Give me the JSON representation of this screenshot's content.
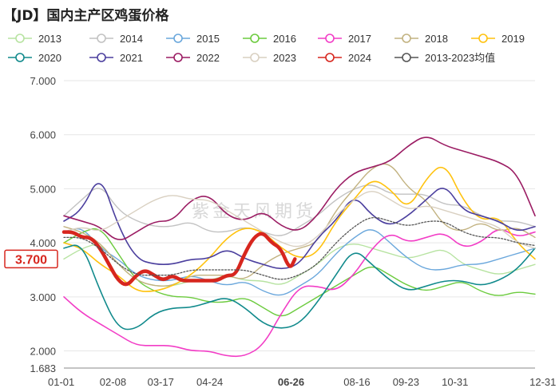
{
  "chart_data": {
    "type": "line",
    "title": "【JD】国内主产区鸡蛋价格",
    "watermark": "紫金天风期货",
    "ylim": [
      1.683,
      7.0
    ],
    "yticks": [
      "7.000",
      "6.000",
      "5.000",
      "4.000",
      "3.000",
      "2.000",
      "1.683"
    ],
    "ytick_values": [
      7.0,
      6.0,
      5.0,
      4.0,
      3.0,
      2.0,
      1.683
    ],
    "x_day_max": 365,
    "xticks": [
      {
        "label": "01-01",
        "day": 0
      },
      {
        "label": "02-08",
        "day": 38
      },
      {
        "label": "03-17",
        "day": 75
      },
      {
        "label": "04-24",
        "day": 113
      },
      {
        "label": "06-26",
        "day": 176,
        "highlight": true
      },
      {
        "label": "08-16",
        "day": 227
      },
      {
        "label": "09-23",
        "day": 265
      },
      {
        "label": "10-31",
        "day": 303
      },
      {
        "label": "12-31",
        "day": 364
      }
    ],
    "current_value_label": "3.700",
    "current_value": 3.7,
    "current_date_label": "06-26",
    "series": [
      {
        "name": "2013",
        "color": "#b7e3a1",
        "width": 1.4,
        "dash": "",
        "values": [
          3.7,
          3.9,
          4.0,
          3.6,
          3.3,
          3.2,
          3.2,
          3.3,
          3.3,
          3.4,
          3.3,
          3.3,
          3.2,
          3.4,
          3.6,
          3.9,
          4.0,
          3.9,
          3.8,
          3.7,
          3.8,
          3.9,
          3.6,
          3.5,
          3.4,
          3.5,
          3.6
        ]
      },
      {
        "name": "2014",
        "color": "#c2c2c2",
        "width": 1.4,
        "dash": "",
        "values": [
          4.5,
          4.8,
          5.1,
          4.6,
          4.4,
          4.3,
          4.3,
          4.4,
          4.2,
          4.2,
          4.3,
          4.2,
          4.1,
          4.3,
          4.5,
          4.8,
          5.0,
          5.1,
          4.9,
          4.9,
          4.9,
          4.7,
          4.7,
          4.5,
          4.4,
          4.4,
          4.3
        ]
      },
      {
        "name": "2015",
        "color": "#6aa7dc",
        "width": 1.4,
        "dash": "",
        "values": [
          4.2,
          4.3,
          3.9,
          3.7,
          3.4,
          3.3,
          3.3,
          3.4,
          3.3,
          3.2,
          3.3,
          3.1,
          3.0,
          3.2,
          3.4,
          3.8,
          4.1,
          4.3,
          4.0,
          3.7,
          3.5,
          3.5,
          3.6,
          3.6,
          3.7,
          3.8,
          3.9
        ]
      },
      {
        "name": "2016",
        "color": "#6ccb3e",
        "width": 1.4,
        "dash": "",
        "values": [
          4.0,
          4.2,
          4.3,
          3.8,
          3.3,
          3.1,
          3.0,
          3.0,
          2.9,
          2.9,
          3.0,
          2.8,
          2.6,
          2.8,
          3.0,
          3.2,
          3.4,
          3.6,
          3.4,
          3.2,
          3.1,
          3.2,
          3.3,
          3.1,
          3.0,
          3.1,
          3.05
        ]
      },
      {
        "name": "2017",
        "color": "#f23dc6",
        "width": 1.6,
        "dash": "",
        "values": [
          3.0,
          2.7,
          2.5,
          2.3,
          2.1,
          2.1,
          2.1,
          2.0,
          2.0,
          1.9,
          1.9,
          2.1,
          2.7,
          3.2,
          3.2,
          3.1,
          3.4,
          3.9,
          4.2,
          4.0,
          4.1,
          4.2,
          3.9,
          4.0,
          4.3,
          4.1,
          4.2
        ]
      },
      {
        "name": "2018",
        "color": "#c2b280",
        "width": 1.4,
        "dash": "",
        "values": [
          4.3,
          4.2,
          4.0,
          3.6,
          3.3,
          3.2,
          3.2,
          3.4,
          3.4,
          3.4,
          3.3,
          3.6,
          3.8,
          3.9,
          4.0,
          4.6,
          5.0,
          5.4,
          5.5,
          5.0,
          4.8,
          4.3,
          4.2,
          4.4,
          4.2,
          4.3,
          4.1
        ]
      },
      {
        "name": "2019",
        "color": "#ffc20e",
        "width": 1.6,
        "dash": "",
        "values": [
          4.0,
          3.9,
          3.6,
          3.4,
          3.1,
          3.1,
          3.2,
          3.4,
          3.7,
          4.1,
          4.3,
          4.2,
          3.9,
          3.7,
          3.8,
          4.4,
          4.8,
          5.2,
          5.0,
          4.6,
          5.2,
          5.5,
          4.8,
          4.4,
          4.5,
          4.0,
          3.7
        ]
      },
      {
        "name": "2020",
        "color": "#118a8c",
        "width": 1.6,
        "dash": "",
        "values": [
          3.9,
          4.0,
          3.1,
          2.4,
          2.4,
          2.7,
          2.8,
          2.8,
          2.9,
          3.0,
          2.8,
          2.5,
          2.4,
          2.5,
          2.9,
          3.4,
          3.9,
          3.6,
          3.3,
          3.1,
          3.2,
          3.3,
          3.3,
          3.2,
          3.3,
          3.5,
          3.9
        ]
      },
      {
        "name": "2021",
        "color": "#4b3f9e",
        "width": 1.6,
        "dash": "",
        "values": [
          4.4,
          4.6,
          5.3,
          4.3,
          3.7,
          3.6,
          3.6,
          3.7,
          3.7,
          3.9,
          3.7,
          3.6,
          3.5,
          3.6,
          4.1,
          4.4,
          4.9,
          4.5,
          4.3,
          4.5,
          4.8,
          5.1,
          4.6,
          4.5,
          4.4,
          4.2,
          4.3
        ]
      },
      {
        "name": "2022",
        "color": "#9b1c63",
        "width": 1.6,
        "dash": "",
        "values": [
          4.5,
          4.4,
          4.3,
          4.0,
          4.2,
          4.4,
          4.4,
          4.8,
          4.9,
          4.5,
          4.4,
          4.6,
          4.3,
          4.2,
          4.5,
          5.0,
          5.3,
          5.4,
          5.5,
          5.8,
          6.0,
          5.8,
          5.7,
          5.6,
          5.5,
          5.3,
          4.5
        ]
      },
      {
        "name": "2023",
        "color": "#d9d0c1",
        "width": 1.4,
        "dash": "",
        "values": [
          4.2,
          4.3,
          4.2,
          4.4,
          4.6,
          4.8,
          4.9,
          4.8,
          4.8,
          4.6,
          4.4,
          4.2,
          4.0,
          3.9,
          4.1,
          4.5,
          4.8,
          5.0,
          4.8,
          4.6,
          4.7,
          4.6,
          4.5,
          4.4,
          4.3,
          4.0,
          3.9
        ]
      },
      {
        "name": "2024",
        "color": "#d7261e",
        "width": 4.5,
        "dash": "",
        "days": [
          0,
          7,
          14,
          21,
          28,
          35,
          42,
          49,
          56,
          63,
          70,
          77,
          84,
          91,
          98,
          105,
          112,
          119,
          126,
          133,
          140,
          147,
          154,
          161,
          168,
          175,
          179
        ],
        "values": [
          4.2,
          4.2,
          4.1,
          4.1,
          3.9,
          3.6,
          3.3,
          3.2,
          3.4,
          3.5,
          3.4,
          3.3,
          3.4,
          3.3,
          3.3,
          3.3,
          3.3,
          3.3,
          3.4,
          3.4,
          3.8,
          4.1,
          4.2,
          4.0,
          3.9,
          3.5,
          3.7
        ]
      },
      {
        "name": "2013-2023均值",
        "color": "#555555",
        "width": 1.3,
        "dash": "2,2",
        "values": [
          4.1,
          4.1,
          3.9,
          3.6,
          3.4,
          3.4,
          3.4,
          3.5,
          3.5,
          3.5,
          3.5,
          3.4,
          3.3,
          3.4,
          3.6,
          4.0,
          4.3,
          4.5,
          4.4,
          4.3,
          4.4,
          4.4,
          4.2,
          4.1,
          4.1,
          4.0,
          3.95
        ]
      }
    ]
  }
}
